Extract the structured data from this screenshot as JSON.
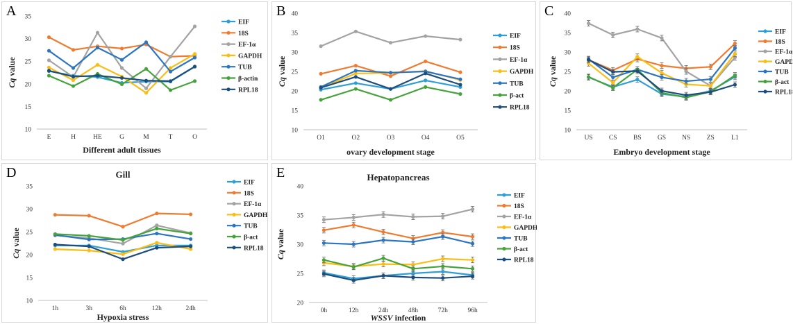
{
  "panels": [
    {
      "letter": "A"
    },
    {
      "letter": "B"
    },
    {
      "letter": "C"
    },
    {
      "letter": "D"
    },
    {
      "letter": "E"
    }
  ],
  "colors": {
    "EIF": "#2e9fd6",
    "18S": "#ef7b30",
    "EF-1α": "#a3a3a3",
    "GAPDH": "#f9bd14",
    "TUB": "#2d75c0",
    "β-act": "#45a33a",
    "RPL18": "#1d4d7c"
  },
  "chart_data": [
    {
      "type": "line",
      "title": "",
      "xlabel": "Different adult tissues",
      "ylabel": "Cq value",
      "ylim": [
        10,
        35
      ],
      "yticks": [
        10,
        15,
        20,
        25,
        30,
        35
      ],
      "categories": [
        "E",
        "H",
        "HE",
        "G",
        "M",
        "T",
        "O"
      ],
      "error_bars": false,
      "series": [
        {
          "name": "EIF",
          "values": [
            22.8,
            21.8,
            21.5,
            20.2,
            20.5,
            20.5,
            23.8
          ]
        },
        {
          "name": "18S",
          "values": [
            30.3,
            27.5,
            28.3,
            27.8,
            28.7,
            26.0,
            26.2
          ]
        },
        {
          "name": "EF-1α",
          "values": [
            25.2,
            21.5,
            31.3,
            23.5,
            19.0,
            26.0,
            32.7
          ]
        },
        {
          "name": "GAPDH",
          "values": [
            23.6,
            20.8,
            24.2,
            21.6,
            18.0,
            23.5,
            26.6
          ]
        },
        {
          "name": "TUB",
          "values": [
            27.3,
            23.5,
            28.0,
            25.3,
            29.2,
            22.7,
            25.8
          ]
        },
        {
          "name": "β-actin",
          "values": [
            21.8,
            19.5,
            22.2,
            19.9,
            23.3,
            18.6,
            20.6
          ]
        },
        {
          "name": "RPL18",
          "values": [
            22.9,
            21.6,
            21.8,
            21.3,
            20.7,
            20.6,
            23.8
          ]
        }
      ]
    },
    {
      "type": "line",
      "title": "",
      "xlabel": "ovary development stage",
      "ylabel": "Cq value",
      "ylim": [
        10,
        40
      ],
      "yticks": [
        10,
        15,
        20,
        25,
        30,
        35,
        40
      ],
      "categories": [
        "O1",
        "O2",
        "O3",
        "O4",
        "O5"
      ],
      "error_bars": false,
      "series": [
        {
          "name": "EIF",
          "values": [
            20.3,
            22.0,
            20.5,
            22.7,
            21.0
          ]
        },
        {
          "name": "18S",
          "values": [
            24.4,
            26.5,
            23.8,
            27.6,
            24.8
          ]
        },
        {
          "name": "EF-1α",
          "values": [
            31.5,
            35.3,
            32.4,
            34.1,
            33.2
          ]
        },
        {
          "name": "GAPDH",
          "values": [
            20.8,
            24.5,
            24.6,
            25.1,
            22.8
          ]
        },
        {
          "name": "TUB",
          "values": [
            21.0,
            25.2,
            24.7,
            25.0,
            23.0
          ]
        },
        {
          "name": "β-act",
          "values": [
            17.7,
            20.5,
            17.7,
            21.0,
            19.2
          ]
        },
        {
          "name": "RPL18",
          "values": [
            20.8,
            23.6,
            20.5,
            24.5,
            21.6
          ]
        }
      ]
    },
    {
      "type": "line",
      "title": "",
      "xlabel": "Embryo development stage",
      "ylabel": "Cq value",
      "ylim": [
        10,
        40
      ],
      "yticks": [
        10,
        15,
        20,
        25,
        30,
        35,
        40
      ],
      "categories": [
        "US",
        "CS",
        "BS",
        "GS",
        "NS",
        "ZS",
        "L1"
      ],
      "error_bars": true,
      "series": [
        {
          "name": "EIF",
          "values": [
            23.5,
            21.0,
            22.9,
            19.2,
            18.5,
            20.0,
            23.6
          ]
        },
        {
          "name": "18S",
          "values": [
            28.0,
            25.3,
            28.2,
            26.5,
            25.8,
            26.2,
            32.2
          ]
        },
        {
          "name": "EF-1α",
          "values": [
            37.4,
            34.4,
            35.9,
            33.6,
            25.0,
            21.3,
            28.6
          ]
        },
        {
          "name": "GAPDH",
          "values": [
            27.1,
            22.1,
            28.8,
            24.6,
            21.7,
            21.3,
            29.6
          ]
        },
        {
          "name": "TUB",
          "values": [
            28.2,
            23.5,
            25.5,
            23.5,
            22.5,
            23.0,
            31.0
          ]
        },
        {
          "name": "β-act",
          "values": [
            23.6,
            20.8,
            25.5,
            19.5,
            18.3,
            19.8,
            24.0
          ]
        },
        {
          "name": "RPL18",
          "values": [
            28.0,
            24.9,
            25.1,
            20.0,
            18.9,
            19.7,
            21.6
          ]
        }
      ]
    },
    {
      "type": "line",
      "title": "Gill",
      "xlabel": "Hypoxia stress",
      "ylabel": "Cq value",
      "ylim": [
        10,
        35
      ],
      "yticks": [
        10,
        15,
        20,
        25,
        30,
        35
      ],
      "categories": [
        "1h",
        "3h",
        "6h",
        "12h",
        "24h"
      ],
      "error_bars": false,
      "series": [
        {
          "name": "EIF",
          "values": [
            22.0,
            22.0,
            20.6,
            22.0,
            22.0
          ]
        },
        {
          "name": "18S",
          "values": [
            28.7,
            28.5,
            26.1,
            29.0,
            28.8
          ]
        },
        {
          "name": "EF-1α",
          "values": [
            24.2,
            23.6,
            22.4,
            26.4,
            24.7
          ]
        },
        {
          "name": "GAPDH",
          "values": [
            21.2,
            20.9,
            20.1,
            22.6,
            21.2
          ]
        },
        {
          "name": "TUB",
          "values": [
            24.3,
            23.3,
            23.4,
            24.6,
            23.4
          ]
        },
        {
          "name": "β-act",
          "values": [
            24.5,
            24.1,
            23.2,
            25.7,
            24.6
          ]
        },
        {
          "name": "RPL18",
          "values": [
            22.2,
            21.8,
            19.0,
            21.5,
            21.8
          ]
        }
      ]
    },
    {
      "type": "line",
      "title": "Hepatopancreas",
      "xlabel": "WSSV infection",
      "ylabel": "Cq value",
      "ylim": [
        20,
        40
      ],
      "yticks": [
        20,
        25,
        30,
        35,
        40
      ],
      "categories": [
        "0h",
        "12h",
        "24h",
        "48h",
        "72h",
        "96h"
      ],
      "error_bars": true,
      "series": [
        {
          "name": "EIF",
          "values": [
            25.1,
            24.1,
            24.6,
            25.0,
            25.3,
            24.7
          ]
        },
        {
          "name": "18S",
          "values": [
            32.4,
            33.3,
            32.1,
            31.0,
            32.0,
            31.3
          ]
        },
        {
          "name": "EF-1α",
          "values": [
            34.2,
            34.6,
            35.1,
            34.7,
            34.8,
            36.0
          ]
        },
        {
          "name": "GAPDH",
          "values": [
            26.8,
            26.2,
            26.6,
            26.5,
            27.5,
            27.3
          ]
        },
        {
          "name": "TUB",
          "values": [
            30.2,
            30.0,
            30.7,
            30.4,
            31.3,
            30.1
          ]
        },
        {
          "name": "β-act",
          "values": [
            27.3,
            26.1,
            27.6,
            25.8,
            26.2,
            25.8
          ]
        },
        {
          "name": "RPL18",
          "values": [
            24.9,
            23.8,
            24.6,
            24.3,
            24.2,
            24.5
          ]
        }
      ]
    }
  ]
}
